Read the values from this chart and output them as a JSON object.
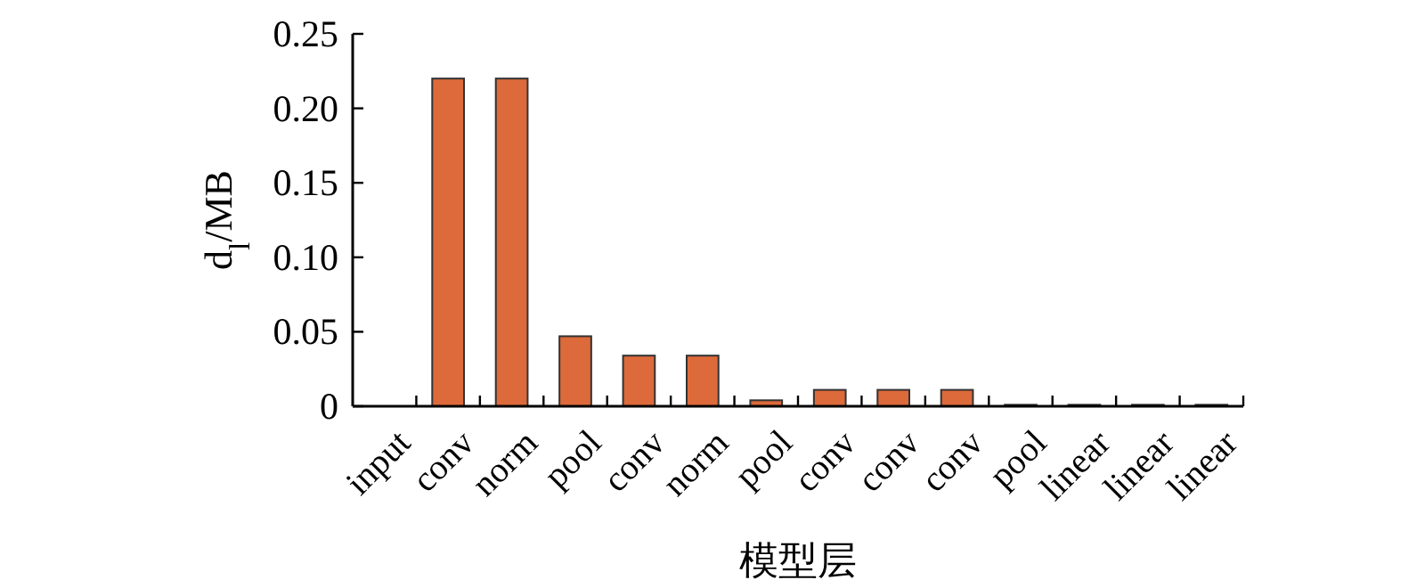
{
  "chart_data": {
    "type": "bar",
    "xlabel": "模型层",
    "ylabel": "d$_{l}$/MB",
    "categories": [
      "input",
      "conv",
      "norm",
      "pool",
      "conv",
      "norm",
      "pool",
      "conv",
      "conv",
      "conv",
      "pool",
      "linear",
      "linear",
      "linear"
    ],
    "values": [
      0,
      0.22,
      0.22,
      0.047,
      0.034,
      0.034,
      0.004,
      0.011,
      0.011,
      0.011,
      0.001,
      0.001,
      0.001,
      0.001
    ],
    "color": "#dc6a3a",
    "ylim": [
      0,
      0.25
    ],
    "yticks": [
      0,
      {
        "value": 0.05,
        "label": "0.05"
      },
      {
        "value": 0.1,
        "label": "0.10"
      },
      {
        "value": 0.15,
        "label": "0.15"
      },
      {
        "value": 0.2,
        "label": "0.20"
      },
      {
        "value": 0.25,
        "label": "0.25"
      }
    ],
    "grid": false
  }
}
